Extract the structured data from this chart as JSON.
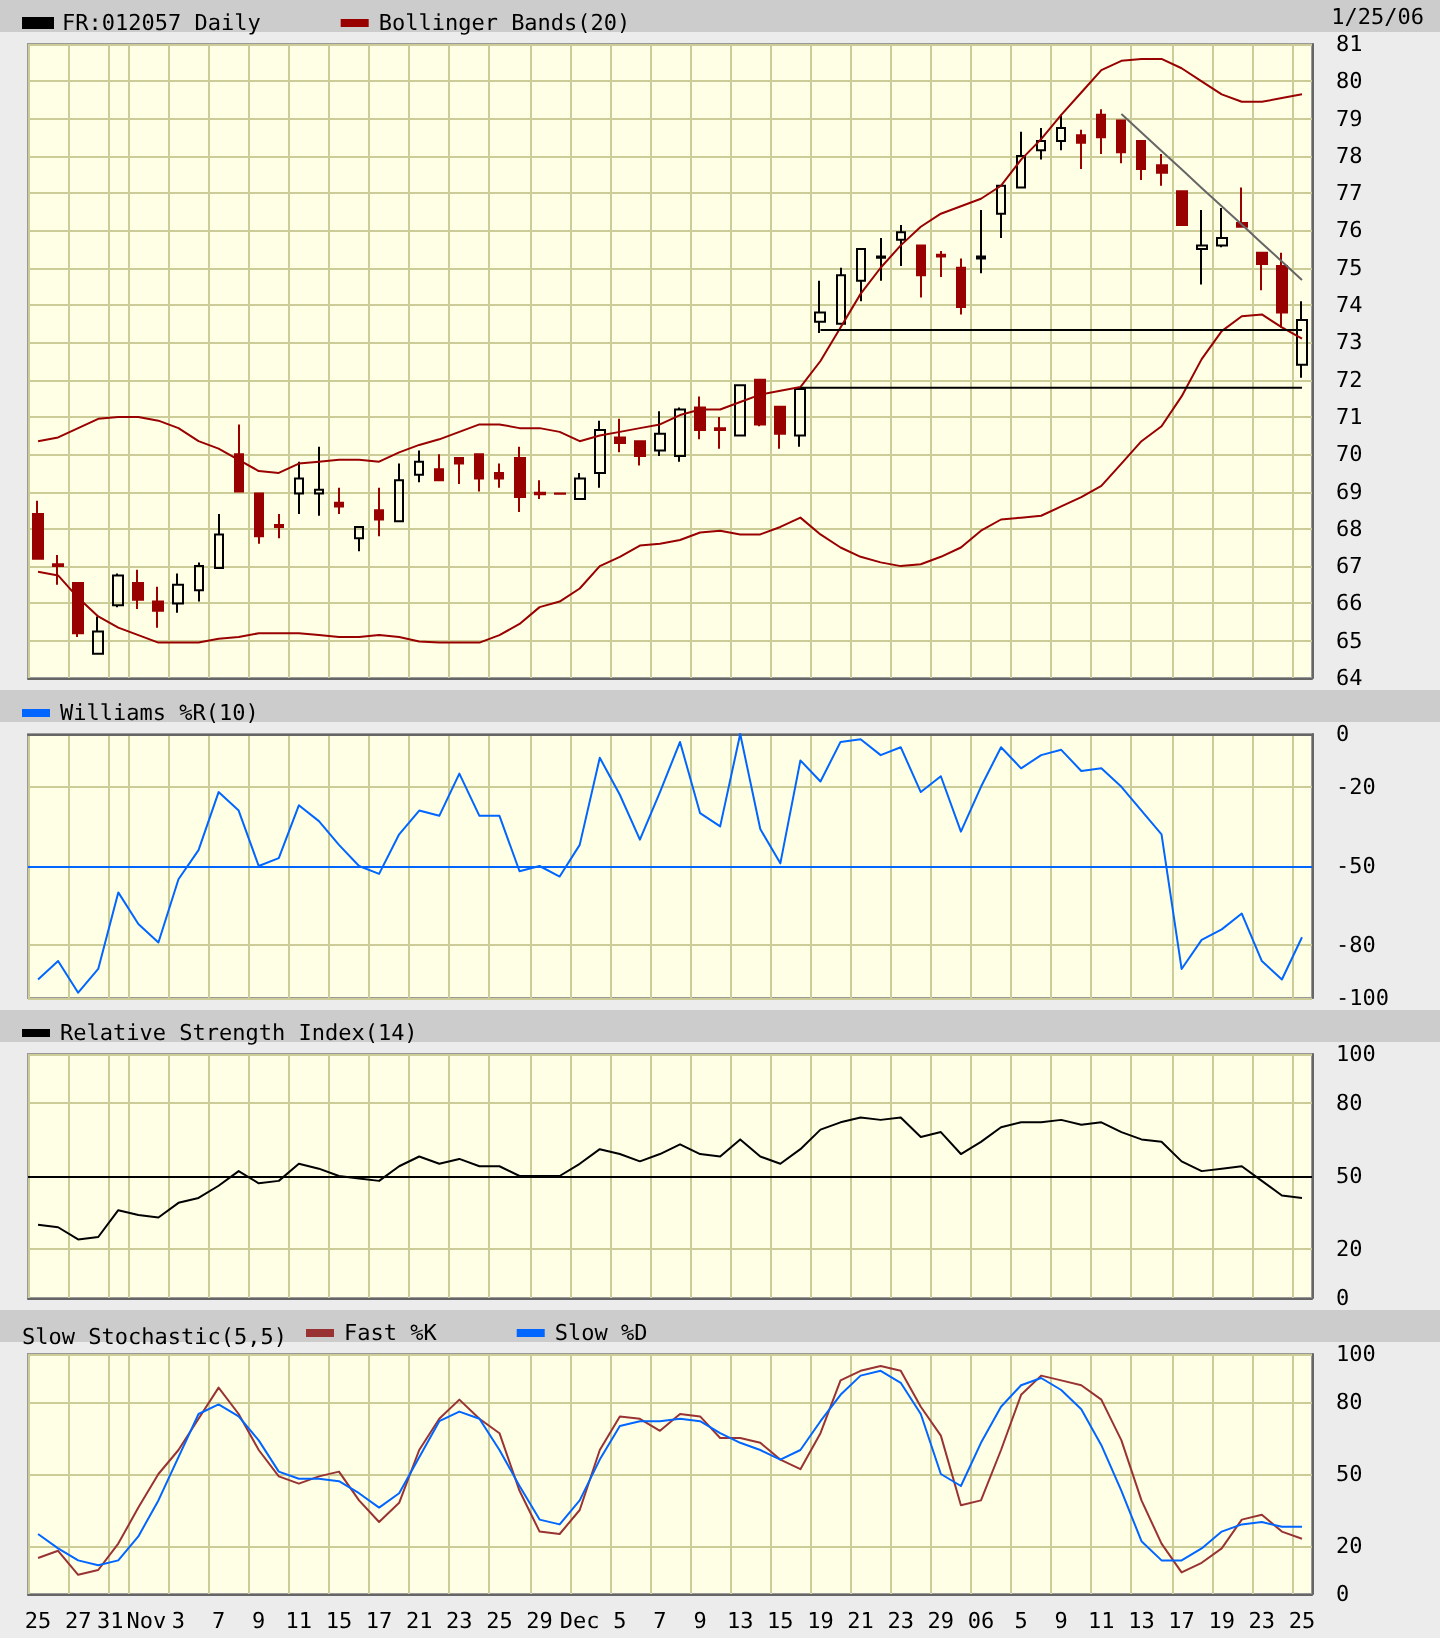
{
  "chart_data": [
    {
      "type": "candlestick",
      "annotations": [
        "1/25/06"
      ],
      "categories": [
        null,
        null,
        null,
        null,
        null,
        null,
        null,
        null,
        null,
        null,
        null,
        null,
        null,
        null,
        null,
        null,
        null,
        null,
        null,
        null,
        null,
        null,
        null,
        null,
        null,
        null,
        null,
        null,
        null,
        null,
        null,
        null,
        null,
        null,
        null,
        null,
        null,
        null,
        null,
        null,
        null,
        null,
        null,
        null,
        null,
        null,
        null,
        null,
        null,
        null,
        null,
        null,
        null,
        null,
        null,
        null,
        null,
        null,
        null,
        null,
        null,
        null,
        null,
        null
      ],
      "series": [
        {
          "name": "FR:012057 Daily",
          "color": "#000000",
          "ohlc": [
            [
              68.4,
              68.75,
              67.2,
              67.2
            ],
            [
              67.05,
              67.3,
              66.5,
              67.0
            ],
            [
              66.55,
              66.55,
              65.1,
              65.2
            ],
            [
              64.65,
              65.65,
              64.65,
              65.25
            ],
            [
              65.95,
              66.8,
              65.9,
              66.75
            ],
            [
              66.55,
              66.9,
              65.85,
              66.1
            ],
            [
              66.05,
              66.45,
              65.35,
              65.8
            ],
            [
              66.0,
              66.8,
              65.75,
              66.5
            ],
            [
              66.35,
              67.1,
              66.05,
              67.0
            ],
            [
              66.95,
              68.4,
              66.95,
              67.85
            ],
            [
              70.0,
              70.8,
              69.0,
              69.0
            ],
            [
              68.95,
              68.95,
              67.6,
              67.8
            ],
            [
              68.1,
              68.4,
              67.75,
              68.05
            ],
            [
              68.95,
              69.8,
              68.4,
              69.35
            ],
            [
              68.95,
              70.2,
              68.35,
              69.05
            ],
            [
              68.7,
              69.1,
              68.4,
              68.6
            ],
            [
              67.75,
              68.05,
              67.4,
              68.05
            ],
            [
              68.5,
              69.1,
              67.8,
              68.25
            ],
            [
              68.2,
              69.75,
              68.2,
              69.3
            ],
            [
              69.45,
              70.1,
              69.25,
              69.8
            ],
            [
              69.6,
              70.0,
              69.3,
              69.3
            ],
            [
              69.9,
              69.9,
              69.2,
              69.75
            ],
            [
              70.0,
              70.0,
              69.0,
              69.35
            ],
            [
              69.5,
              69.75,
              69.1,
              69.35
            ],
            [
              69.9,
              70.2,
              68.45,
              68.85
            ],
            [
              68.97,
              69.3,
              68.8,
              68.93
            ],
            [
              68.95,
              68.96,
              68.94,
              68.94
            ],
            [
              68.8,
              69.5,
              68.8,
              69.35
            ],
            [
              69.5,
              70.9,
              69.1,
              70.65
            ],
            [
              70.45,
              70.95,
              70.05,
              70.3
            ],
            [
              70.35,
              70.35,
              69.7,
              69.95
            ],
            [
              70.1,
              71.15,
              69.95,
              70.55
            ],
            [
              69.95,
              71.25,
              69.8,
              71.2
            ],
            [
              71.25,
              71.55,
              70.4,
              70.65
            ],
            [
              70.7,
              71.0,
              70.15,
              70.65
            ],
            [
              70.5,
              71.85,
              70.5,
              71.85
            ],
            [
              72.0,
              72.0,
              70.75,
              70.8
            ],
            [
              71.27,
              71.27,
              70.15,
              70.55
            ],
            [
              70.5,
              71.75,
              70.2,
              71.75
            ],
            [
              73.55,
              74.65,
              73.25,
              73.8
            ],
            [
              73.5,
              75.0,
              73.5,
              74.8
            ],
            [
              74.65,
              75.5,
              74.1,
              75.5
            ],
            [
              75.27,
              75.8,
              74.65,
              75.3
            ],
            [
              75.75,
              76.15,
              75.05,
              75.95
            ],
            [
              75.6,
              75.6,
              74.2,
              74.8
            ],
            [
              75.35,
              75.45,
              74.75,
              75.3
            ],
            [
              75.0,
              75.25,
              73.75,
              73.95
            ],
            [
              75.25,
              76.55,
              74.85,
              75.3
            ],
            [
              76.45,
              77.2,
              75.8,
              77.2
            ],
            [
              77.15,
              78.65,
              77.15,
              78.0
            ],
            [
              78.15,
              78.75,
              77.9,
              78.4
            ],
            [
              78.4,
              79.1,
              78.15,
              78.75
            ],
            [
              78.55,
              78.7,
              77.65,
              78.35
            ],
            [
              79.1,
              79.25,
              78.05,
              78.5
            ],
            [
              78.95,
              78.95,
              77.8,
              78.1
            ],
            [
              78.4,
              78.4,
              77.35,
              77.65
            ],
            [
              77.75,
              78.05,
              77.2,
              77.55
            ],
            [
              77.05,
              77.05,
              76.15,
              76.15
            ],
            [
              75.5,
              76.55,
              74.55,
              75.6
            ],
            [
              75.6,
              76.6,
              75.55,
              75.8
            ],
            [
              76.2,
              77.15,
              76.1,
              76.1
            ],
            [
              75.4,
              75.4,
              74.4,
              75.1
            ],
            [
              75.05,
              75.4,
              73.4,
              73.8
            ],
            [
              72.4,
              74.1,
              72.05,
              73.6
            ]
          ],
          "colors": [
            "#990000",
            "#990000",
            "#990000",
            "#000000",
            "#000000",
            "#990000",
            "#990000",
            "#000000",
            "#000000",
            "#000000",
            "#990000",
            "#990000",
            "#990000",
            "#000000",
            "#000000",
            "#990000",
            "#000000",
            "#990000",
            "#000000",
            "#000000",
            "#990000",
            "#990000",
            "#990000",
            "#990000",
            "#990000",
            "#990000",
            "#990000",
            "#000000",
            "#000000",
            "#990000",
            "#990000",
            "#000000",
            "#000000",
            "#990000",
            "#990000",
            "#000000",
            "#990000",
            "#990000",
            "#000000",
            "#000000",
            "#000000",
            "#000000",
            "#000000",
            "#000000",
            "#990000",
            "#990000",
            "#990000",
            "#000000",
            "#000000",
            "#000000",
            "#000000",
            "#000000",
            "#990000",
            "#990000",
            "#990000",
            "#990000",
            "#990000",
            "#990000",
            "#000000",
            "#000000",
            "#990000",
            "#990000",
            "#990000",
            "#000000"
          ]
        },
        {
          "type": "line",
          "name": "Bollinger Bands(20)",
          "color": "#990000",
          "values": [
            70.35,
            70.45,
            70.7,
            70.95,
            71.0,
            71.0,
            70.9,
            70.7,
            70.35,
            70.15,
            69.85,
            69.55,
            69.5,
            69.75,
            69.8,
            69.85,
            69.85,
            69.8,
            70.05,
            70.25,
            70.4,
            70.6,
            70.8,
            70.8,
            70.7,
            70.7,
            70.6,
            70.35,
            70.5,
            70.6,
            70.7,
            70.8,
            71.05,
            71.2,
            71.2,
            71.4,
            71.6,
            71.7,
            71.8,
            72.5,
            73.4,
            74.3,
            75.0,
            75.6,
            76.1,
            76.45,
            76.65,
            76.85,
            77.2,
            77.9,
            78.45,
            79.1,
            79.7,
            80.3,
            80.55,
            80.6,
            80.6,
            80.35,
            80.0,
            79.65,
            79.45,
            79.45,
            79.55,
            79.65
          ]
        },
        {
          "type": "line",
          "color": "#990000",
          "values": [
            66.85,
            66.75,
            66.15,
            65.65,
            65.35,
            65.15,
            64.95,
            64.95,
            64.95,
            65.05,
            65.1,
            65.2,
            65.2,
            65.2,
            65.15,
            65.1,
            65.1,
            65.15,
            65.1,
            64.98,
            64.95,
            64.95,
            64.95,
            65.15,
            65.45,
            65.9,
            66.05,
            66.4,
            67.0,
            67.25,
            67.55,
            67.6,
            67.7,
            67.9,
            67.95,
            67.85,
            67.85,
            68.05,
            68.3,
            67.85,
            67.5,
            67.25,
            67.1,
            67.0,
            67.05,
            67.25,
            67.5,
            67.95,
            68.25,
            68.3,
            68.35,
            68.6,
            68.85,
            69.15,
            69.75,
            70.35,
            70.75,
            71.55,
            72.55,
            73.3,
            73.7,
            73.75,
            73.4,
            73.1
          ]
        },
        {
          "type": "line",
          "color": "#000000",
          "values": [
            null,
            null,
            null,
            null,
            null,
            null,
            null,
            null,
            null,
            null,
            null,
            null,
            null,
            null,
            null,
            null,
            null,
            null,
            null,
            null,
            null,
            null,
            null,
            null,
            null,
            null,
            null,
            null,
            null,
            null,
            null,
            null,
            null,
            null,
            null,
            null,
            null,
            null,
            null,
            73.33,
            73.33,
            73.33,
            73.33,
            73.33,
            73.33,
            73.33,
            73.33,
            73.33,
            73.33,
            73.33,
            73.33,
            73.33,
            73.33,
            73.33,
            73.33,
            73.33,
            73.33,
            73.33,
            73.33,
            73.33,
            73.33,
            73.33,
            73.33,
            73.33
          ]
        },
        {
          "type": "line",
          "color": "#000000",
          "values": [
            null,
            null,
            null,
            null,
            null,
            null,
            null,
            null,
            null,
            null,
            null,
            null,
            null,
            null,
            null,
            null,
            null,
            null,
            null,
            null,
            null,
            null,
            null,
            null,
            null,
            null,
            null,
            null,
            null,
            null,
            null,
            null,
            null,
            null,
            null,
            null,
            null,
            null,
            71.78,
            71.78,
            71.78,
            71.78,
            71.78,
            71.78,
            71.78,
            71.78,
            71.78,
            71.78,
            71.78,
            71.78,
            71.78,
            71.78,
            71.78,
            71.78,
            71.78,
            71.78,
            71.78,
            71.78,
            71.78,
            71.78,
            71.78,
            71.78,
            71.78,
            71.78
          ]
        },
        {
          "type": "line",
          "color": "#666666",
          "values": [
            null,
            null,
            null,
            null,
            null,
            null,
            null,
            null,
            null,
            null,
            null,
            null,
            null,
            null,
            null,
            null,
            null,
            null,
            null,
            null,
            null,
            null,
            null,
            null,
            null,
            null,
            null,
            null,
            null,
            null,
            null,
            null,
            null,
            null,
            null,
            null,
            null,
            null,
            null,
            null,
            null,
            null,
            null,
            null,
            null,
            null,
            null,
            null,
            null,
            null,
            null,
            null,
            null,
            null,
            79.12,
            78.63,
            78.13,
            77.64,
            77.14,
            76.65,
            76.16,
            75.66,
            75.17,
            74.67
          ]
        }
      ],
      "ylim": [
        64,
        81
      ],
      "yticks": [
        64,
        65,
        66,
        67,
        68,
        69,
        70,
        71,
        72,
        73,
        74,
        75,
        76,
        77,
        78,
        79,
        80,
        81
      ],
      "grid": true,
      "legend": "top left",
      "marker": "none",
      "tick_labels": "y"
    },
    {
      "type": "line",
      "categories": [
        null,
        null,
        null,
        null,
        null,
        null,
        null,
        null,
        null,
        null,
        null,
        null,
        null,
        null,
        null,
        null,
        null,
        null,
        null,
        null,
        null,
        null,
        null,
        null,
        null,
        null,
        null,
        null,
        null,
        null,
        null,
        null,
        null,
        null,
        null,
        null,
        null,
        null,
        null,
        null,
        null,
        null,
        null,
        null,
        null,
        null,
        null,
        null,
        null,
        null,
        null,
        null,
        null,
        null,
        null,
        null,
        null,
        null,
        null,
        null,
        null,
        null,
        null,
        null
      ],
      "series": [
        {
          "name": "Williams %R(10)",
          "color": "#0066ff",
          "values": [
            -93,
            -86,
            -98,
            -89,
            -60,
            -72,
            -79,
            -55,
            -44,
            -22,
            -29,
            -50,
            -47,
            -27,
            -33,
            -42,
            -50,
            -53,
            -38,
            -29,
            -31,
            -15,
            -31,
            -31,
            -52,
            -50,
            -54,
            -42,
            -9,
            -23,
            -40,
            -22,
            -3,
            -30,
            -35,
            0,
            -36,
            -49,
            -10,
            -18,
            -3,
            -2,
            -8,
            -5,
            -22,
            -16,
            -37,
            -20,
            -5,
            -13,
            -8,
            -6,
            -14,
            -13,
            -20,
            -29,
            -38,
            -89,
            -78,
            -74,
            -68,
            -86,
            -93,
            -77
          ]
        }
      ],
      "ylim": [
        -100,
        0
      ],
      "yticks": [
        -100,
        -80,
        -50,
        -20,
        0
      ],
      "ref_lines": [
        {
          "axis": "y",
          "value": -50,
          "color": "#0066ff"
        }
      ],
      "grid": true,
      "legend": "top left",
      "marker": "none",
      "tick_labels": "y"
    },
    {
      "type": "line",
      "categories": [
        null,
        null,
        null,
        null,
        null,
        null,
        null,
        null,
        null,
        null,
        null,
        null,
        null,
        null,
        null,
        null,
        null,
        null,
        null,
        null,
        null,
        null,
        null,
        null,
        null,
        null,
        null,
        null,
        null,
        null,
        null,
        null,
        null,
        null,
        null,
        null,
        null,
        null,
        null,
        null,
        null,
        null,
        null,
        null,
        null,
        null,
        null,
        null,
        null,
        null,
        null,
        null,
        null,
        null,
        null,
        null,
        null,
        null,
        null,
        null,
        null,
        null,
        null,
        null
      ],
      "series": [
        {
          "name": "Relative Strength Index(14)",
          "color": "#000000",
          "values": [
            30,
            29,
            24,
            25,
            36,
            34,
            33,
            39,
            41,
            46,
            52,
            47,
            48,
            55,
            53,
            50,
            49,
            48,
            54,
            58,
            55,
            57,
            54,
            54,
            50,
            50,
            50,
            55,
            61,
            59,
            56,
            59,
            63,
            59,
            58,
            65,
            58,
            55,
            61,
            69,
            72,
            74,
            73,
            74,
            66,
            68,
            59,
            64,
            70,
            72,
            72,
            73,
            71,
            72,
            68,
            65,
            64,
            56,
            52,
            53,
            54,
            48,
            42,
            41
          ]
        }
      ],
      "ylim": [
        0,
        100
      ],
      "yticks": [
        0,
        20,
        50,
        80,
        100
      ],
      "ref_lines": [
        {
          "axis": "y",
          "value": 50,
          "color": "#000000"
        }
      ],
      "grid": true,
      "legend": "top left",
      "marker": "none",
      "tick_labels": "y"
    },
    {
      "type": "line",
      "title": "Slow Stochastic(5,5)",
      "categories": [
        "25",
        null,
        "27",
        null,
        "31",
        "Nov",
        null,
        "3",
        null,
        "7",
        null,
        "9",
        null,
        "11",
        null,
        "15",
        null,
        "17",
        null,
        "21",
        null,
        "23",
        null,
        "25",
        null,
        "29",
        null,
        "Dec",
        null,
        "5",
        null,
        "7",
        null,
        "9",
        null,
        "13",
        null,
        "15",
        null,
        "19",
        null,
        "21",
        null,
        "23",
        null,
        "29",
        null,
        "06",
        null,
        "5",
        null,
        "9",
        null,
        "11",
        null,
        "13",
        null,
        "17",
        null,
        "19",
        null,
        "23",
        null,
        "25"
      ],
      "series": [
        {
          "name": "Fast %K",
          "color": "#993333",
          "values": [
            15,
            18,
            8,
            10,
            21,
            36,
            50,
            60,
            73,
            86,
            75,
            60,
            49,
            46,
            49,
            51,
            39,
            30,
            38,
            60,
            73,
            81,
            73,
            67,
            43,
            26,
            25,
            35,
            60,
            74,
            73,
            68,
            75,
            74,
            65,
            65,
            63,
            56,
            52,
            67,
            89,
            93,
            95,
            93,
            78,
            66,
            37,
            39,
            60,
            83,
            91,
            89,
            87,
            81,
            64,
            39,
            21,
            9,
            13,
            19,
            31,
            33,
            26,
            23
          ]
        },
        {
          "name": "Slow %D",
          "color": "#0066ff",
          "values": [
            25,
            19,
            14,
            12,
            14,
            24,
            39,
            57,
            75,
            79,
            74,
            64,
            51,
            48,
            48,
            47,
            42,
            36,
            42,
            57,
            72,
            76,
            73,
            60,
            45,
            31,
            29,
            39,
            56,
            70,
            72,
            72,
            73,
            72,
            67,
            63,
            60,
            56,
            60,
            72,
            83,
            91,
            93,
            88,
            75,
            50,
            45,
            63,
            78,
            87,
            90,
            85,
            77,
            62,
            43,
            22,
            14,
            14,
            19,
            26,
            29,
            30,
            28,
            28
          ]
        }
      ],
      "ylim": [
        0,
        100
      ],
      "yticks": [
        0,
        20,
        50,
        80,
        100
      ],
      "grid": true,
      "legend": "top left",
      "marker": "none"
    }
  ]
}
